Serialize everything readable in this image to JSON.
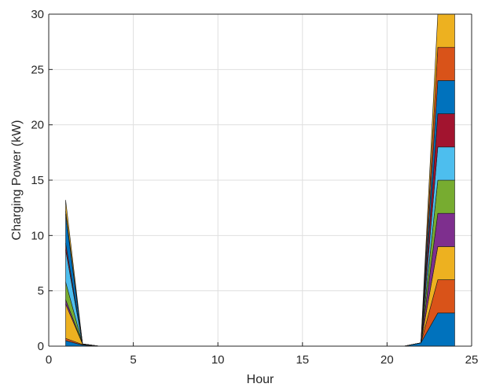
{
  "chart_data": {
    "type": "area",
    "stacked": true,
    "title": "",
    "xlabel": "Hour",
    "ylabel": "Charging Power (kW)",
    "xlim": [
      0,
      25
    ],
    "ylim": [
      0,
      30
    ],
    "xticks": [
      0,
      5,
      10,
      15,
      20,
      25
    ],
    "yticks": [
      0,
      5,
      10,
      15,
      20,
      25,
      30
    ],
    "grid": true,
    "legend": "none",
    "x": [
      1,
      2,
      3,
      4,
      5,
      6,
      7,
      8,
      9,
      10,
      11,
      12,
      13,
      14,
      15,
      16,
      17,
      18,
      19,
      20,
      21,
      22,
      23,
      24
    ],
    "series": [
      {
        "color": "#0072BD",
        "values": [
          0.5,
          0.1,
          0,
          0,
          0,
          0,
          0,
          0,
          0,
          0,
          0,
          0,
          0,
          0,
          0,
          0,
          0,
          0,
          0,
          0,
          0,
          0.3,
          3,
          3
        ]
      },
      {
        "color": "#D95319",
        "values": [
          0.2,
          0.05,
          0,
          0,
          0,
          0,
          0,
          0,
          0,
          0,
          0,
          0,
          0,
          0,
          0,
          0,
          0,
          0,
          0,
          0,
          0,
          0,
          3,
          3
        ]
      },
      {
        "color": "#EDB120",
        "values": [
          3.1,
          0.05,
          0,
          0,
          0,
          0,
          0,
          0,
          0,
          0,
          0,
          0,
          0,
          0,
          0,
          0,
          0,
          0,
          0,
          0,
          0,
          0,
          3,
          3
        ]
      },
      {
        "color": "#7E2F8E",
        "values": [
          0.4,
          0,
          0,
          0,
          0,
          0,
          0,
          0,
          0,
          0,
          0,
          0,
          0,
          0,
          0,
          0,
          0,
          0,
          0,
          0,
          0,
          0,
          3,
          3
        ]
      },
      {
        "color": "#77AC30",
        "values": [
          1.6,
          0,
          0,
          0,
          0,
          0,
          0,
          0,
          0,
          0,
          0,
          0,
          0,
          0,
          0,
          0,
          0,
          0,
          0,
          0,
          0,
          0,
          3,
          3
        ]
      },
      {
        "color": "#4DBEEE",
        "values": [
          2.9,
          0,
          0,
          0,
          0,
          0,
          0,
          0,
          0,
          0,
          0,
          0,
          0,
          0,
          0,
          0,
          0,
          0,
          0,
          0,
          0,
          0,
          3,
          3
        ]
      },
      {
        "color": "#A2142F",
        "values": [
          0.6,
          0,
          0,
          0,
          0,
          0,
          0,
          0,
          0,
          0,
          0,
          0,
          0,
          0,
          0,
          0,
          0,
          0,
          0,
          0,
          0,
          0,
          3,
          3
        ]
      },
      {
        "color": "#0072BD",
        "values": [
          2.6,
          0,
          0,
          0,
          0,
          0,
          0,
          0,
          0,
          0,
          0,
          0,
          0,
          0,
          0,
          0,
          0,
          0,
          0,
          0,
          0,
          0,
          3,
          3
        ]
      },
      {
        "color": "#D95319",
        "values": [
          0.3,
          0,
          0,
          0,
          0,
          0,
          0,
          0,
          0,
          0,
          0,
          0,
          0,
          0,
          0,
          0,
          0,
          0,
          0,
          0,
          0,
          0,
          3,
          3
        ]
      },
      {
        "color": "#EDB120",
        "values": [
          1.0,
          0,
          0,
          0,
          0,
          0,
          0,
          0,
          0,
          0,
          0,
          0,
          0,
          0,
          0,
          0,
          0,
          0,
          0,
          0,
          0,
          0,
          3,
          3
        ]
      }
    ]
  }
}
